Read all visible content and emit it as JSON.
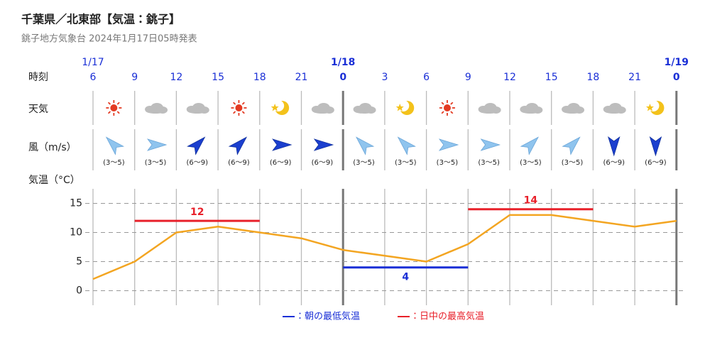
{
  "header": {
    "title": "千葉県／北東部【気温：銚子】",
    "subtitle": "銚子地方気象台 2024年1月17日05時発表"
  },
  "chart_data": {
    "type": "line",
    "time_label": "時刻",
    "weather_label": "天気",
    "wind_label": "風（m/s）",
    "ylabel": "気温（°C）",
    "categories": [
      "6",
      "9",
      "12",
      "15",
      "18",
      "21",
      "0",
      "3",
      "6",
      "9",
      "12",
      "15",
      "18",
      "21",
      "0"
    ],
    "dates": [
      "1/17",
      null,
      null,
      null,
      null,
      null,
      "1/18",
      null,
      null,
      null,
      null,
      null,
      null,
      null,
      "1/19"
    ],
    "weather": [
      "sunny",
      "cloudy",
      "cloudy",
      "sunny",
      "clear-night",
      "cloudy",
      "cloudy",
      "clear-night",
      "sunny",
      "cloudy",
      "cloudy",
      "cloudy",
      "cloudy",
      "clear-night"
    ],
    "wind": [
      {
        "direction": 315,
        "label": "(3〜5)",
        "color": "#8fc4ee"
      },
      {
        "direction": 90,
        "label": "(3〜5)",
        "color": "#8fc4ee"
      },
      {
        "direction": 45,
        "label": "(6〜9)",
        "color": "#1b3fcf"
      },
      {
        "direction": 45,
        "label": "(6〜9)",
        "color": "#1b3fcf"
      },
      {
        "direction": 90,
        "label": "(6〜9)",
        "color": "#1b3fcf"
      },
      {
        "direction": 90,
        "label": "(6〜9)",
        "color": "#1b3fcf"
      },
      {
        "direction": 315,
        "label": "(3〜5)",
        "color": "#8fc4ee"
      },
      {
        "direction": 315,
        "label": "(3〜5)",
        "color": "#8fc4ee"
      },
      {
        "direction": 90,
        "label": "(3〜5)",
        "color": "#8fc4ee"
      },
      {
        "direction": 90,
        "label": "(3〜5)",
        "color": "#8fc4ee"
      },
      {
        "direction": 45,
        "label": "(3〜5)",
        "color": "#8fc4ee"
      },
      {
        "direction": 45,
        "label": "(3〜5)",
        "color": "#8fc4ee"
      },
      {
        "direction": 180,
        "label": "(6〜9)",
        "color": "#1b3fcf"
      },
      {
        "direction": 180,
        "label": "(6〜9)",
        "color": "#1b3fcf"
      }
    ],
    "series": [
      {
        "color": "#f3a521",
        "values": [
          2,
          5,
          10,
          11,
          10,
          9,
          7,
          6,
          5,
          8,
          13,
          13,
          12,
          11,
          12
        ]
      }
    ],
    "ylim": [
      -2.5,
      17.5
    ],
    "yticks": [
      0,
      5,
      10,
      15
    ],
    "grid": true,
    "min_temp": {
      "name": "：朝の最低気温",
      "color": "#1a2fd6",
      "items": [
        {
          "value": 4,
          "span": [
            6,
            9
          ]
        }
      ]
    },
    "max_temp": {
      "name": "：日中の最高気温",
      "color": "#e8202a",
      "items": [
        {
          "value": 12,
          "span": [
            1,
            4
          ]
        },
        {
          "value": 14,
          "span": [
            9,
            12
          ]
        }
      ]
    }
  }
}
